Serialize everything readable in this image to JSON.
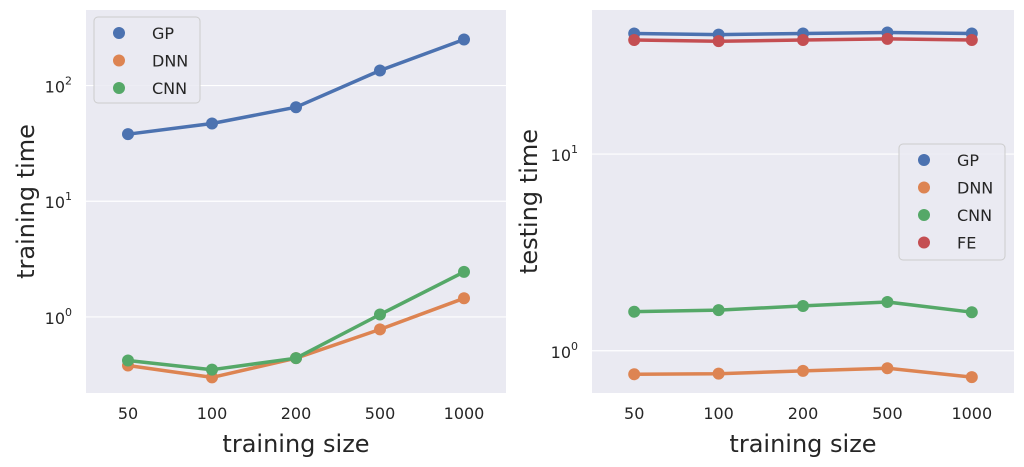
{
  "chart_data": [
    {
      "type": "line",
      "categories": [
        "50",
        "100",
        "200",
        "500",
        "1000"
      ],
      "series": [
        {
          "name": "GP",
          "color": "#4c72b0",
          "values": [
            38,
            47,
            65,
            135,
            250
          ]
        },
        {
          "name": "DNN",
          "color": "#dd8452",
          "values": [
            0.38,
            0.3,
            0.44,
            0.78,
            1.45
          ]
        },
        {
          "name": "CNN",
          "color": "#55a868",
          "values": [
            0.42,
            0.35,
            0.44,
            1.05,
            2.45
          ]
        }
      ],
      "xlabel": "training size",
      "ylabel": "training time",
      "yscale": "log",
      "ylim": [
        0.22,
        450
      ],
      "yticks": [
        {
          "base": "10",
          "exp": "0",
          "value": 1
        },
        {
          "base": "10",
          "exp": "1",
          "value": 10
        },
        {
          "base": "10",
          "exp": "2",
          "value": 100
        }
      ],
      "grid": true,
      "legend": "top-left"
    },
    {
      "type": "line",
      "categories": [
        "50",
        "100",
        "200",
        "500",
        "1000"
      ],
      "series": [
        {
          "name": "GP",
          "color": "#4c72b0",
          "values": [
            41,
            40.5,
            41,
            41.5,
            41
          ]
        },
        {
          "name": "DNN",
          "color": "#dd8452",
          "values": [
            0.76,
            0.765,
            0.79,
            0.815,
            0.735
          ]
        },
        {
          "name": "CNN",
          "color": "#55a868",
          "values": [
            1.58,
            1.61,
            1.69,
            1.77,
            1.57
          ]
        },
        {
          "name": "FE",
          "color": "#c44e52",
          "values": [
            38,
            37.5,
            38,
            38.5,
            38
          ]
        }
      ],
      "xlabel": "training size",
      "ylabel": "testing time",
      "yscale": "log",
      "ylim": [
        0.61,
        54
      ],
      "yticks": [
        {
          "base": "10",
          "exp": "0",
          "value": 1
        },
        {
          "base": "10",
          "exp": "1",
          "value": 10
        }
      ],
      "grid": true,
      "legend": "center-right"
    }
  ]
}
